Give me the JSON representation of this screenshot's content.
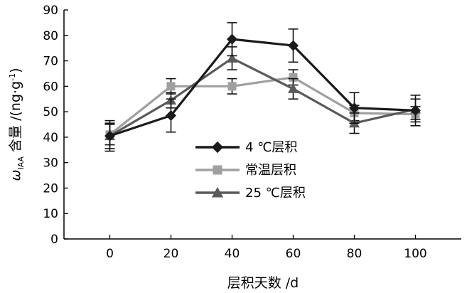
{
  "chart_data": {
    "type": "line",
    "x": [
      0,
      20,
      40,
      60,
      80,
      100
    ],
    "x_tick_labels": [
      "0",
      "20",
      "40",
      "60",
      "80",
      "100"
    ],
    "y_tick_labels": [
      "0",
      "10",
      "20",
      "30",
      "40",
      "50",
      "60",
      "70",
      "80",
      "90"
    ],
    "xlim": [
      -15,
      115
    ],
    "ylim": [
      0,
      90
    ],
    "xlabel": "层积天数 /d",
    "ylabel_symbol": "ω",
    "ylabel_subscript": "IAA",
    "ylabel_rest": " 含量 /(ng·g",
    "ylabel_superscript": "-1",
    "ylabel_close": ")",
    "grid": false,
    "legend_position": "center",
    "series": [
      {
        "name": "4 ℃层积",
        "color": "#1a1a1a",
        "marker": "diamond",
        "values": [
          40.5,
          48.5,
          78.5,
          76,
          51.5,
          50.5
        ],
        "errors": [
          6,
          6.5,
          6.5,
          6.5,
          6,
          6
        ]
      },
      {
        "name": "常温层积",
        "color": "#a0a0a0",
        "marker": "square",
        "values": [
          41,
          60,
          60,
          63.5,
          49.5,
          49
        ],
        "errors": [
          4,
          3,
          3,
          3,
          3,
          3
        ]
      },
      {
        "name": "25 ℃层积",
        "color": "#5a5a5a",
        "marker": "triangle",
        "values": [
          40.5,
          54.5,
          71,
          59,
          45.5,
          51
        ],
        "errors": [
          5,
          3,
          4.5,
          4,
          4,
          4
        ]
      }
    ]
  }
}
